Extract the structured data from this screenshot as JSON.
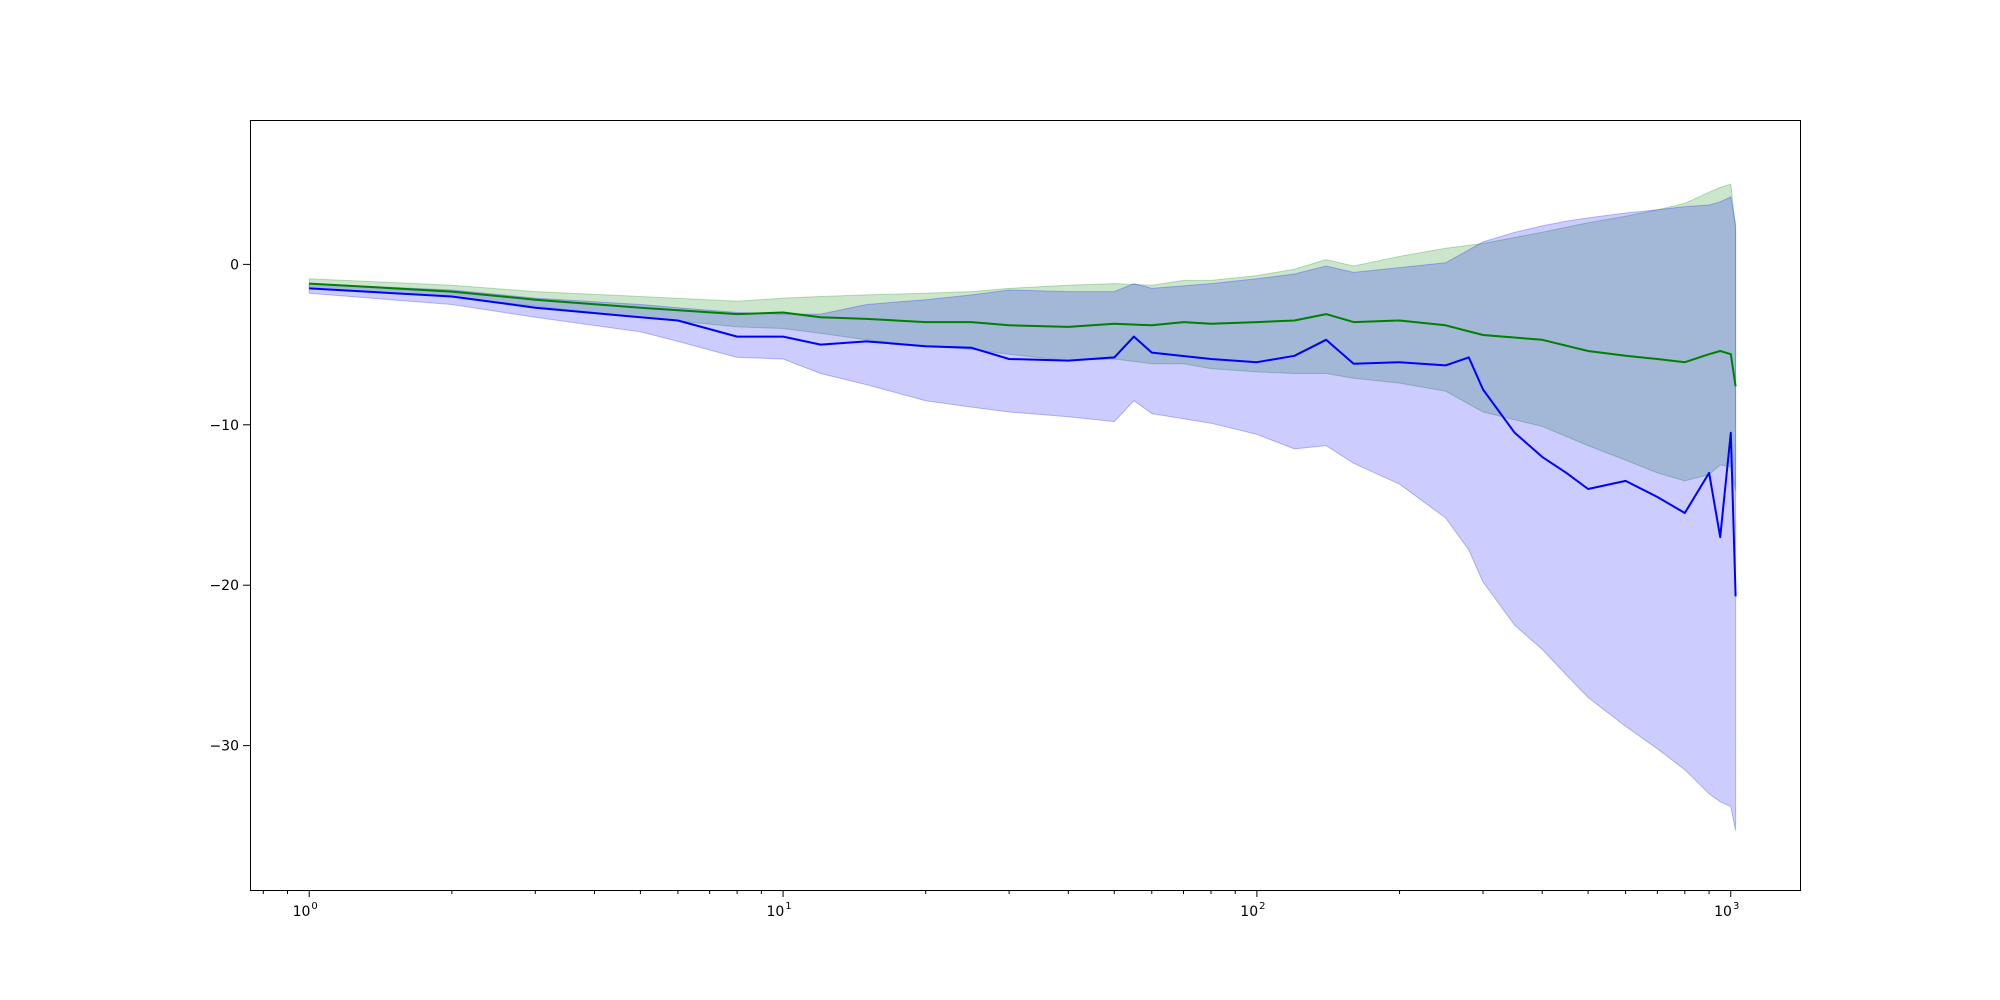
{
  "chart_data": {
    "type": "area",
    "title": "",
    "xlabel": "",
    "ylabel": "",
    "x_scale": "log",
    "xlim": [
      0.75,
      1400
    ],
    "ylim": [
      -39,
      9
    ],
    "grid": false,
    "legend": "none",
    "x_ticks": [
      {
        "value": 1,
        "base": "10",
        "exp": "0"
      },
      {
        "value": 10,
        "base": "10",
        "exp": "1"
      },
      {
        "value": 100,
        "base": "10",
        "exp": "2"
      },
      {
        "value": 1000,
        "base": "10",
        "exp": "3"
      }
    ],
    "y_ticks": [
      {
        "value": 0,
        "label": "0"
      },
      {
        "value": -10,
        "label": "−10"
      },
      {
        "value": -20,
        "label": "−20"
      },
      {
        "value": -30,
        "label": "−30"
      }
    ],
    "series": [
      {
        "color": "#008000",
        "band_color": "#008000",
        "x": [
          1,
          2,
          3,
          5,
          8,
          10,
          12,
          15,
          20,
          25,
          30,
          40,
          50,
          60,
          70,
          80,
          100,
          120,
          140,
          160,
          200,
          250,
          300,
          400,
          500,
          600,
          700,
          800,
          900,
          950,
          1000,
          1024
        ],
        "mean": [
          -1.2,
          -1.7,
          -2.2,
          -2.7,
          -3.1,
          -3.0,
          -3.3,
          -3.4,
          -3.6,
          -3.6,
          -3.8,
          -3.9,
          -3.7,
          -3.8,
          -3.6,
          -3.7,
          -3.6,
          -3.5,
          -3.1,
          -3.6,
          -3.5,
          -3.8,
          -4.4,
          -4.7,
          -5.4,
          -5.7,
          -5.9,
          -6.1,
          -5.6,
          -5.4,
          -5.6,
          -7.6
        ],
        "lower": [
          -1.5,
          -2.0,
          -2.6,
          -3.3,
          -3.9,
          -4.0,
          -4.3,
          -4.7,
          -5.1,
          -5.3,
          -5.6,
          -6.0,
          -5.9,
          -6.2,
          -6.2,
          -6.5,
          -6.7,
          -6.8,
          -6.8,
          -7.1,
          -7.4,
          -7.9,
          -9.2,
          -10.1,
          -11.3,
          -12.2,
          -13.0,
          -13.5,
          -13.1,
          -12.5,
          -12.6,
          -14.1
        ],
        "upper": [
          -0.9,
          -1.3,
          -1.7,
          -2.0,
          -2.3,
          -2.1,
          -2.0,
          -1.9,
          -1.8,
          -1.7,
          -1.5,
          -1.3,
          -1.2,
          -1.3,
          -1.0,
          -1.0,
          -0.7,
          -0.3,
          0.3,
          -0.1,
          0.5,
          1.0,
          1.3,
          2.0,
          2.6,
          3.0,
          3.4,
          3.8,
          4.5,
          4.8,
          5.0,
          2.2
        ]
      },
      {
        "color": "#0000ff",
        "band_color": "#0000ff",
        "x": [
          1,
          2,
          3,
          5,
          6,
          8,
          10,
          12,
          15,
          20,
          25,
          30,
          40,
          50,
          55,
          60,
          80,
          100,
          120,
          140,
          160,
          200,
          250,
          280,
          300,
          350,
          400,
          450,
          500,
          600,
          700,
          800,
          900,
          950,
          1000,
          1024
        ],
        "mean": [
          -1.5,
          -2.0,
          -2.7,
          -3.3,
          -3.5,
          -4.5,
          -4.5,
          -5.0,
          -4.8,
          -5.1,
          -5.2,
          -5.9,
          -6.0,
          -5.8,
          -4.5,
          -5.5,
          -5.9,
          -6.1,
          -5.7,
          -4.7,
          -6.2,
          -6.1,
          -6.3,
          -5.8,
          -7.8,
          -10.5,
          -12.0,
          -13.0,
          -14.0,
          -13.5,
          -14.5,
          -15.5,
          -13.0,
          -17.0,
          -10.5,
          -20.7
        ],
        "lower": [
          -1.8,
          -2.5,
          -3.3,
          -4.2,
          -4.8,
          -5.8,
          -5.9,
          -6.8,
          -7.5,
          -8.5,
          -8.9,
          -9.2,
          -9.5,
          -9.8,
          -8.5,
          -9.3,
          -9.9,
          -10.6,
          -11.5,
          -11.3,
          -12.4,
          -13.7,
          -15.8,
          -17.8,
          -19.8,
          -22.5,
          -24.0,
          -25.6,
          -27.0,
          -28.8,
          -30.2,
          -31.5,
          -33.0,
          -33.5,
          -33.8,
          -35.3
        ],
        "upper": [
          -1.2,
          -1.6,
          -2.1,
          -2.5,
          -2.7,
          -3.0,
          -3.1,
          -3.1,
          -2.5,
          -2.2,
          -1.9,
          -1.6,
          -1.7,
          -1.7,
          -1.2,
          -1.5,
          -1.2,
          -0.9,
          -0.6,
          -0.1,
          -0.5,
          -0.2,
          0.1,
          0.9,
          1.4,
          2.0,
          2.4,
          2.7,
          2.9,
          3.2,
          3.4,
          3.6,
          3.7,
          3.9,
          4.2,
          2.5
        ]
      }
    ]
  }
}
